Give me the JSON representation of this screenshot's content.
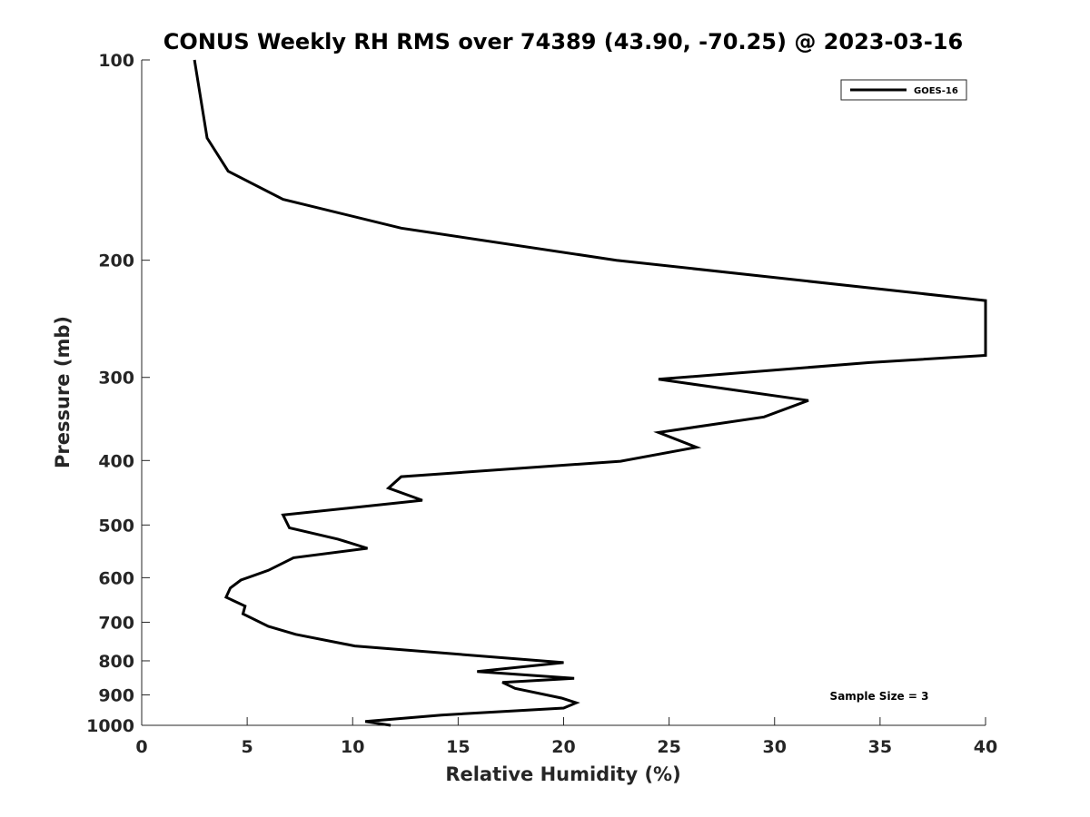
{
  "chart_data": {
    "type": "line",
    "title": "CONUS Weekly RH RMS over 74389 (43.90, -70.25) @ 2023-03-16",
    "xlabel": "Relative Humidity (%)",
    "ylabel": "Pressure (mb)",
    "xlim": [
      0,
      40
    ],
    "ylim": [
      100,
      1000
    ],
    "y_scale": "log",
    "y_reversed": true,
    "grid": false,
    "legend_position": "top-right",
    "x_ticks": [
      "0",
      "5",
      "10",
      "15",
      "20",
      "25",
      "30",
      "35",
      "40"
    ],
    "y_ticks": [
      "100",
      "200",
      "300",
      "400",
      "500",
      "600",
      "700",
      "800",
      "900",
      "1000"
    ],
    "annotation": "Sample Size = 3",
    "series": [
      {
        "name": "GOES-16",
        "color": "#000000",
        "points": [
          [
            11.8,
            1000
          ],
          [
            10.6,
            987
          ],
          [
            14.2,
            965
          ],
          [
            20.0,
            942
          ],
          [
            20.6,
            925
          ],
          [
            19.9,
            910
          ],
          [
            17.7,
            880
          ],
          [
            17.1,
            862
          ],
          [
            20.5,
            850
          ],
          [
            15.9,
            830
          ],
          [
            20.0,
            805
          ],
          [
            10.1,
            760
          ],
          [
            7.3,
            730
          ],
          [
            6.0,
            710
          ],
          [
            4.8,
            680
          ],
          [
            4.9,
            662
          ],
          [
            4.0,
            642
          ],
          [
            4.2,
            622
          ],
          [
            4.7,
            605
          ],
          [
            6.0,
            585
          ],
          [
            7.2,
            560
          ],
          [
            10.7,
            542
          ],
          [
            9.3,
            525
          ],
          [
            7.0,
            505
          ],
          [
            6.7,
            483
          ],
          [
            13.3,
            459
          ],
          [
            11.7,
            440
          ],
          [
            12.3,
            423
          ],
          [
            22.7,
            401
          ],
          [
            26.3,
            382
          ],
          [
            24.5,
            363
          ],
          [
            29.5,
            344
          ],
          [
            31.6,
            325
          ],
          [
            24.5,
            302
          ],
          [
            34.5,
            285
          ],
          [
            40.0,
            278
          ],
          [
            40.0,
            230
          ],
          [
            22.5,
            200
          ],
          [
            12.3,
            179
          ],
          [
            6.7,
            162
          ],
          [
            4.1,
            147
          ],
          [
            3.1,
            131
          ],
          [
            2.5,
            100
          ]
        ]
      }
    ]
  }
}
